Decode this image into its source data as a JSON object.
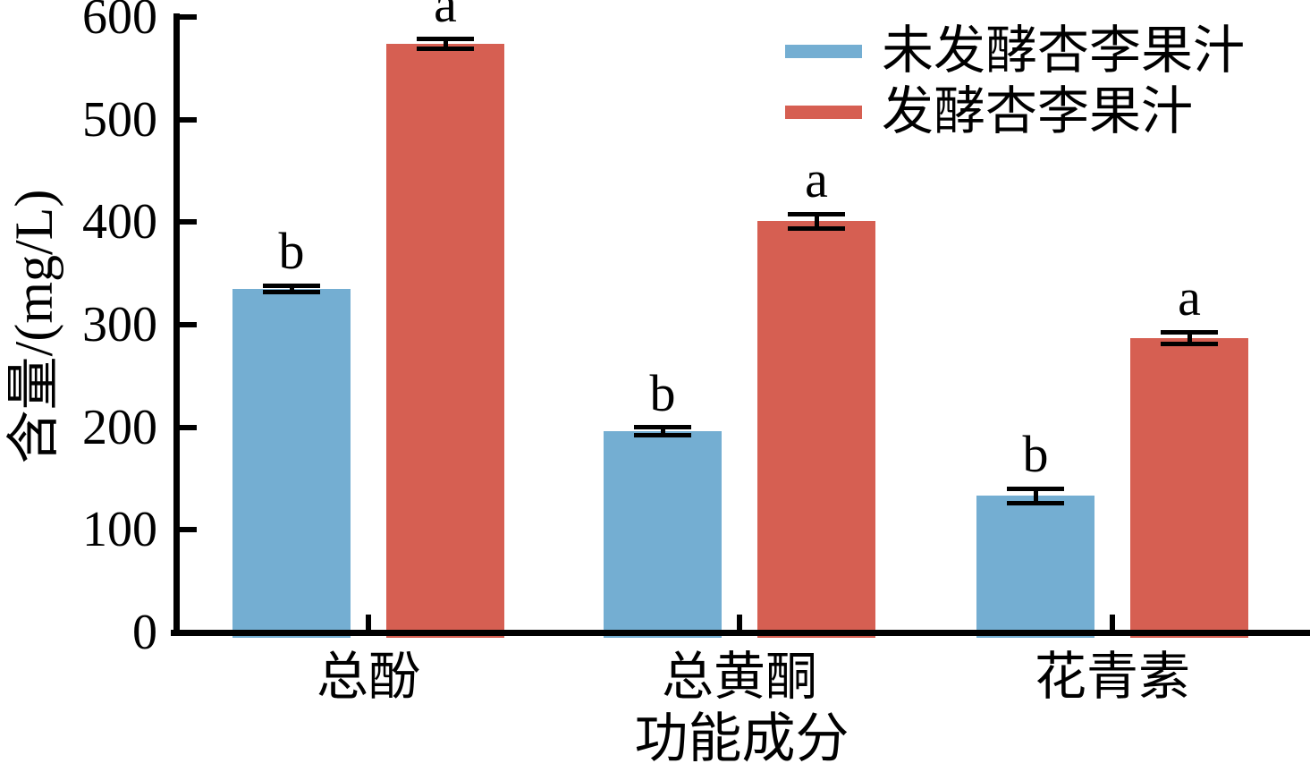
{
  "chart_data": {
    "type": "bar",
    "title": "",
    "xlabel": "功能成分",
    "ylabel": "含量/(mg/L)",
    "categories": [
      "总酚",
      "总黄酮",
      "花青素"
    ],
    "series": [
      {
        "name": "未发酵杏李果汁",
        "color": "#74aed2",
        "values": [
          335,
          196,
          133
        ],
        "errors": [
          3,
          4,
          7
        ],
        "sig_labels": [
          "b",
          "b",
          "b"
        ]
      },
      {
        "name": "发酵杏李果汁",
        "color": "#d65f52",
        "values": [
          574,
          401,
          287
        ],
        "errors": [
          5,
          7,
          6
        ],
        "sig_labels": [
          "a",
          "a",
          "a"
        ]
      }
    ],
    "ylim": [
      0,
      600
    ],
    "yticks": [
      0,
      100,
      200,
      300,
      400,
      500,
      600
    ],
    "grid": false,
    "legend_position": "upper right",
    "axis_color": "#000000"
  }
}
